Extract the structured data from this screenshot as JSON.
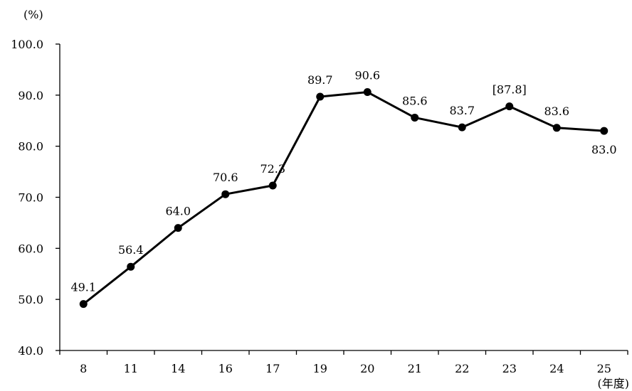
{
  "chart_data": {
    "type": "line",
    "title": "",
    "y_unit": "(%)",
    "x_unit": "(年度)",
    "categories": [
      "8",
      "11",
      "14",
      "16",
      "17",
      "19",
      "20",
      "21",
      "22",
      "23",
      "24",
      "25"
    ],
    "series": [
      {
        "values": [
          49.1,
          56.4,
          64.0,
          70.6,
          72.3,
          89.7,
          90.6,
          85.6,
          83.7,
          87.8,
          83.6,
          83.0
        ],
        "labels": [
          "49.1",
          "56.4",
          "64.0",
          "70.6",
          "72.3",
          "89.7",
          "90.6",
          "85.6",
          "83.7",
          "[87.8]",
          "83.6",
          "83.0"
        ]
      }
    ],
    "ylim": [
      40,
      100
    ],
    "yticks": [
      "40.0",
      "50.0",
      "60.0",
      "70.0",
      "80.0",
      "90.0",
      "100.0"
    ],
    "grid": false,
    "line_color": "#000000"
  }
}
